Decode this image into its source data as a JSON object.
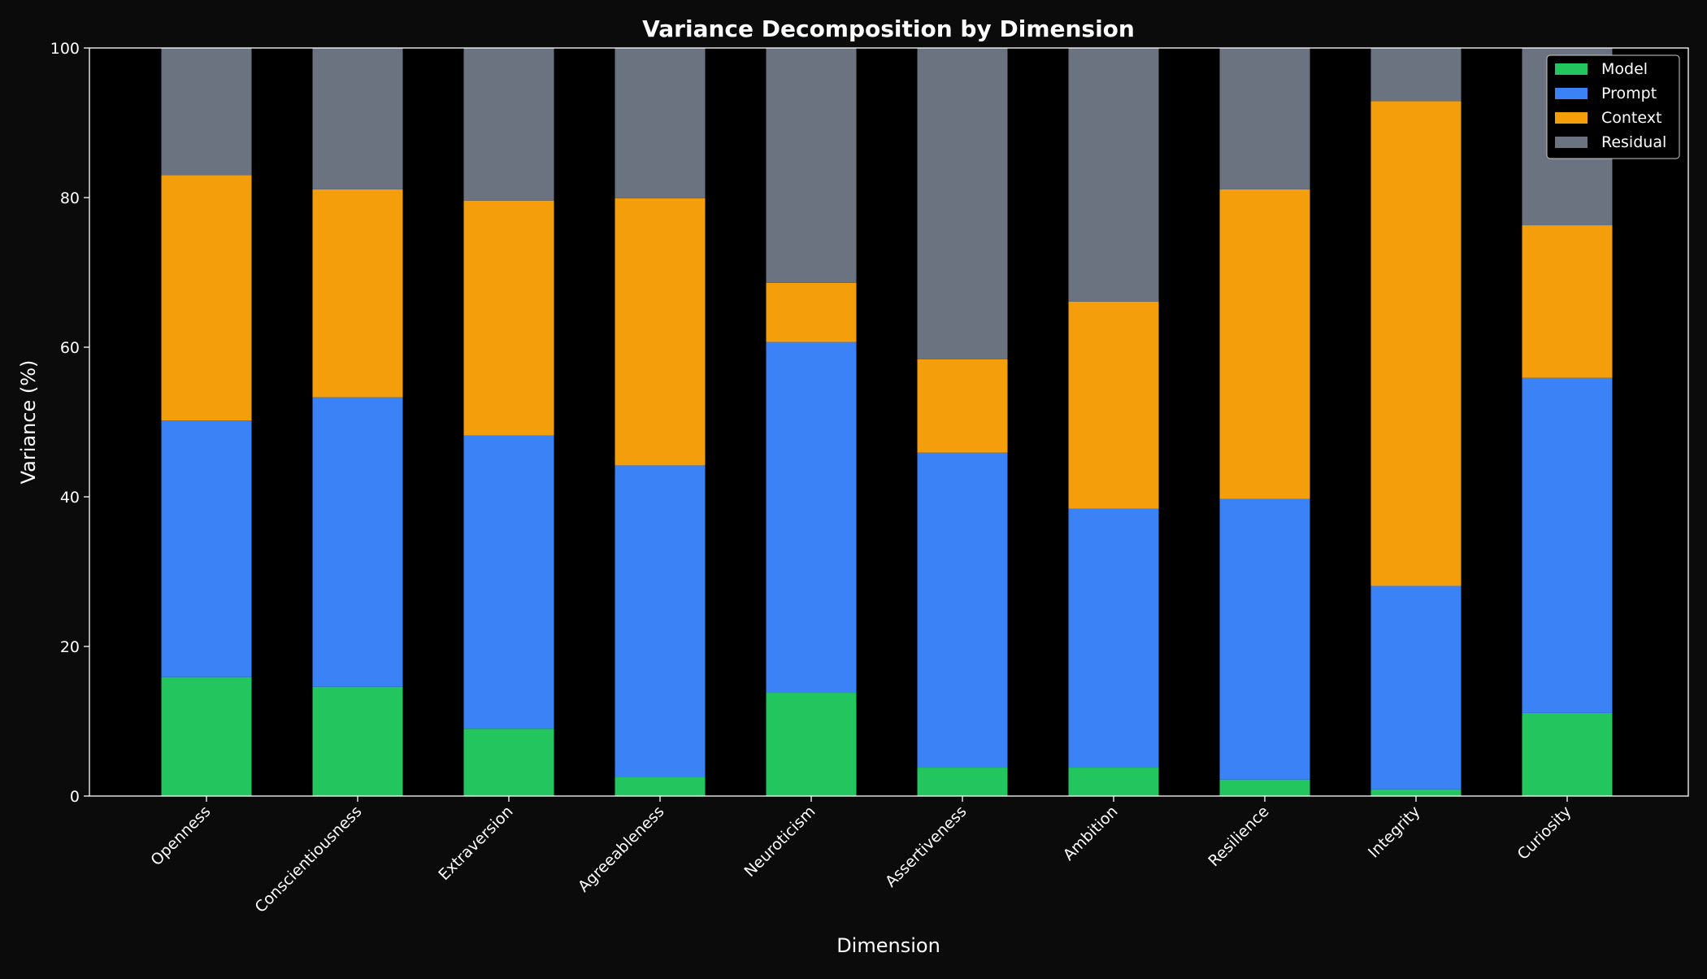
{
  "chart_data": {
    "type": "bar",
    "stacked": true,
    "title": "Variance Decomposition by Dimension",
    "xlabel": "Dimension",
    "ylabel": "Variance (%)",
    "ylim": [
      0,
      100
    ],
    "yticks": [
      0,
      20,
      40,
      60,
      80,
      100
    ],
    "grid": false,
    "legend_position": "top-right",
    "categories": [
      "Openness",
      "Conscientiousness",
      "Extraversion",
      "Agreeableness",
      "Neuroticism",
      "Assertiveness",
      "Ambition",
      "Resilience",
      "Integrity",
      "Curiosity"
    ],
    "series": [
      {
        "name": "Model",
        "color": "#22c55e",
        "values": [
          15.9,
          14.6,
          9.0,
          2.5,
          13.8,
          3.8,
          3.8,
          2.2,
          0.9,
          11.1
        ]
      },
      {
        "name": "Prompt",
        "color": "#3b82f6",
        "values": [
          34.3,
          38.7,
          39.2,
          41.7,
          46.9,
          42.1,
          34.6,
          37.5,
          27.2,
          44.8
        ]
      },
      {
        "name": "Context",
        "color": "#f59e0b",
        "values": [
          32.8,
          27.8,
          31.4,
          35.7,
          7.9,
          12.5,
          27.7,
          41.4,
          64.8,
          20.4
        ]
      },
      {
        "name": "Residual",
        "color": "#6b7280",
        "values": [
          17.0,
          18.9,
          20.4,
          20.1,
          31.4,
          41.6,
          33.9,
          18.9,
          7.1,
          23.7
        ]
      }
    ]
  }
}
